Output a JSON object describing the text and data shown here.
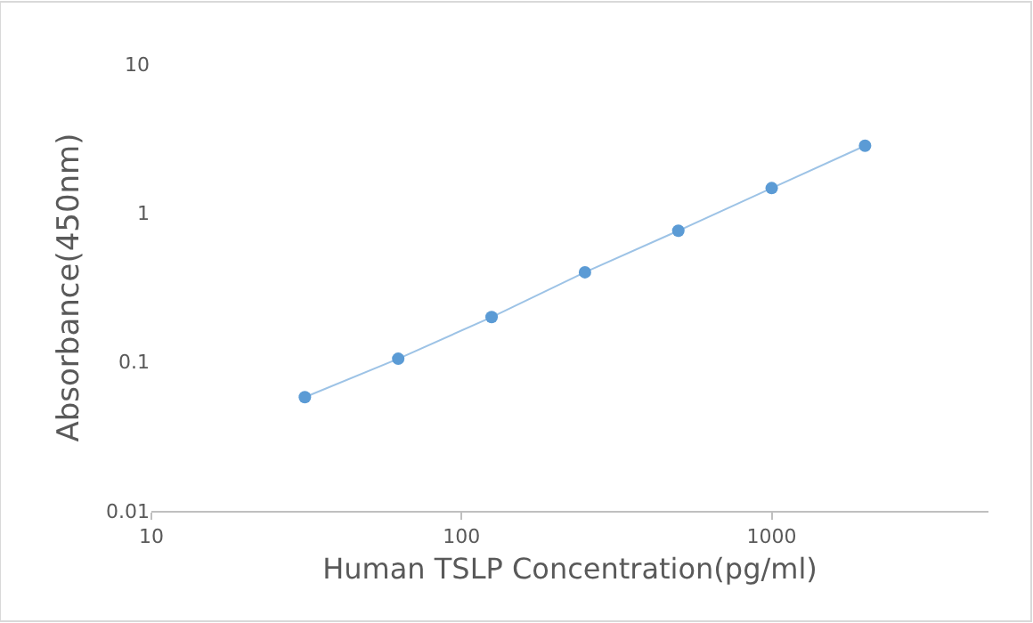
{
  "chart_data": {
    "type": "line",
    "xlabel": "Human TSLP Concentration(pg/ml)",
    "ylabel": "Absorbance(450nm)",
    "log": "xy",
    "x": [
      31.25,
      62.5,
      125,
      250,
      500,
      1000,
      2000
    ],
    "series": [
      {
        "color": "#5b9bd5",
        "values": [
          0.058,
          0.105,
          0.2,
          0.4,
          0.76,
          1.47,
          2.83
        ]
      }
    ],
    "xlim": [
      10,
      5000
    ],
    "xticks": [
      10,
      100,
      1000
    ],
    "ylim": [
      0.01,
      10
    ],
    "yticks": [
      0.01,
      0.1,
      1,
      10
    ],
    "marker": "circle",
    "line_style": "solid"
  }
}
